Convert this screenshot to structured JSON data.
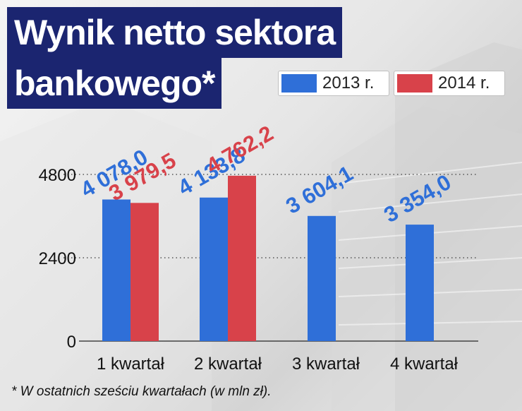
{
  "title": {
    "line1": "Wynik netto sektora",
    "line2": "bankowego*"
  },
  "legend": [
    {
      "label": "2013 r.",
      "color": "#2f6fd8"
    },
    {
      "label": "2014 r.",
      "color": "#d8424a"
    }
  ],
  "footnote": "* W ostatnich sześciu kwartałach (w mln zł).",
  "chart_data": {
    "type": "bar",
    "categories": [
      "1 kwartał",
      "2 kwartał",
      "3 kwartał",
      "4 kwartał"
    ],
    "series": [
      {
        "name": "2013 r.",
        "color": "#2f6fd8",
        "values": [
          4078.0,
          4133.8,
          3604.1,
          3354.0
        ],
        "labels": [
          "4 078,0",
          "4 133,8",
          "3 604,1",
          "3 354,0"
        ]
      },
      {
        "name": "2014 r.",
        "color": "#d8424a",
        "values": [
          3979.5,
          4762.2,
          null,
          null
        ],
        "labels": [
          "3 979,5",
          "4 762,2",
          null,
          null
        ]
      }
    ],
    "yticks": [
      0,
      2400,
      4800
    ],
    "ylim": [
      0,
      4800
    ],
    "grid": true,
    "legend_position": "top-right"
  }
}
